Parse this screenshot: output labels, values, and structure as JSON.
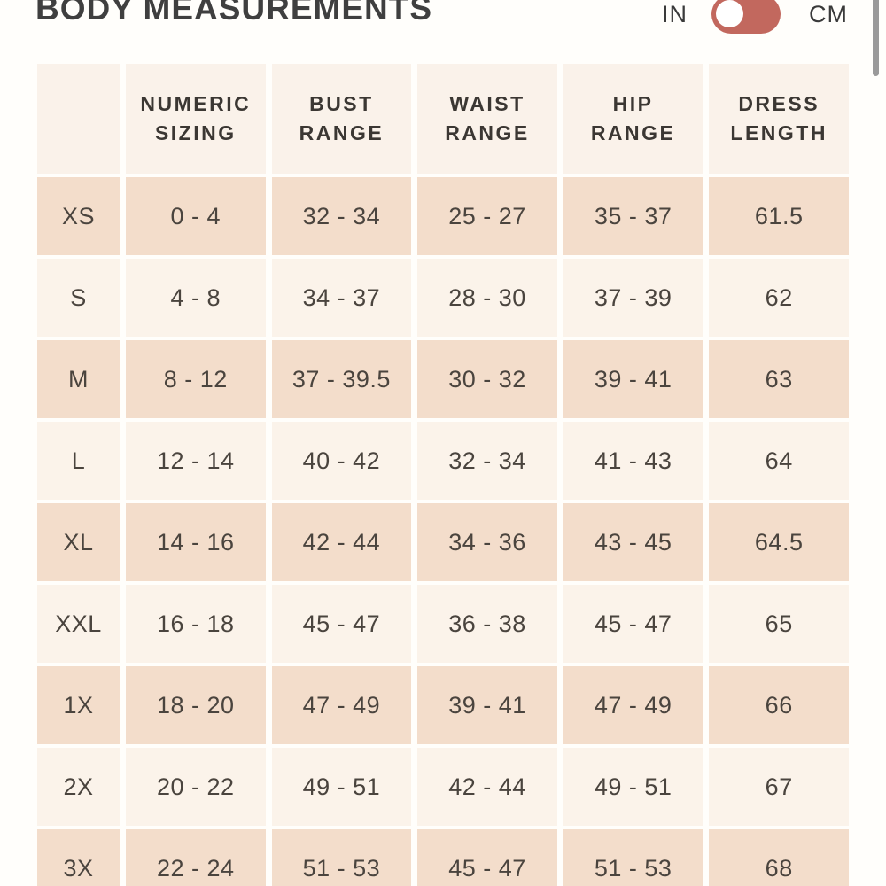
{
  "header": {
    "title": "BODY MEASUREMENTS",
    "unit_toggle": {
      "left_label": "IN",
      "right_label": "CM",
      "selected": "IN"
    }
  },
  "table": {
    "columns": [
      "NUMERIC SIZING",
      "BUST RANGE",
      "WAIST RANGE",
      "HIP RANGE",
      "DRESS LENGTH"
    ],
    "rows": [
      {
        "size": "XS",
        "values": [
          "0 - 4",
          "32 - 34",
          "25 - 27",
          "35 - 37",
          "61.5"
        ]
      },
      {
        "size": "S",
        "values": [
          "4 - 8",
          "34 - 37",
          "28 - 30",
          "37 - 39",
          "62"
        ]
      },
      {
        "size": "M",
        "values": [
          "8 - 12",
          "37 - 39.5",
          "30 - 32",
          "39 - 41",
          "63"
        ]
      },
      {
        "size": "L",
        "values": [
          "12 - 14",
          "40 - 42",
          "32 - 34",
          "41 - 43",
          "64"
        ]
      },
      {
        "size": "XL",
        "values": [
          "14 - 16",
          "42 - 44",
          "34 - 36",
          "43 - 45",
          "64.5"
        ]
      },
      {
        "size": "XXL",
        "values": [
          "16 - 18",
          "45 - 47",
          "36 - 38",
          "45 - 47",
          "65"
        ]
      },
      {
        "size": "1X",
        "values": [
          "18 - 20",
          "47 - 49",
          "39 - 41",
          "47 - 49",
          "66"
        ]
      },
      {
        "size": "2X",
        "values": [
          "20 - 22",
          "49 - 51",
          "42 - 44",
          "49 - 51",
          "67"
        ]
      },
      {
        "size": "3X",
        "values": [
          "22 - 24",
          "51 - 53",
          "45 - 47",
          "51 - 53",
          "68"
        ]
      }
    ]
  },
  "colors": {
    "toggle_track": "#c2685e",
    "row_dark": "#f3ddcb",
    "row_light": "#fbf3ea",
    "header_bg": "#faf2ea",
    "title_text": "#3f3f3f",
    "cell_text": "#4a443e",
    "scrollbar": "#9a9a9a"
  }
}
